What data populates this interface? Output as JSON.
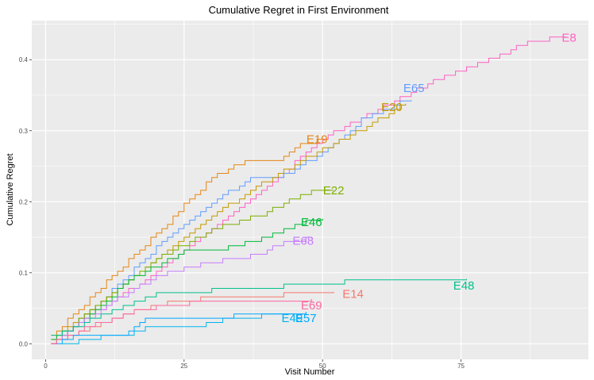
{
  "chart_data": {
    "type": "line",
    "title": "Cumulative Regret in First Environment",
    "xlabel": "Visit Number",
    "ylabel": "Cumulative Regret",
    "xlim": [
      -2.5,
      98
    ],
    "ylim": [
      -0.022,
      0.455
    ],
    "x_ticks": [
      0,
      25,
      50,
      75
    ],
    "y_ticks": [
      0.0,
      0.1,
      0.2,
      0.3,
      0.4
    ],
    "y_tick_labels": [
      "0.0",
      "0.1",
      "0.2",
      "0.3",
      "0.4"
    ],
    "grid": true,
    "legend": "none (direct labels at line ends)",
    "background_color": "#EBEBEB",
    "grid_color": "#FFFFFF",
    "series": [
      {
        "name": "E8",
        "color": "#FF61C3",
        "points": [
          [
            1,
            0.0
          ],
          [
            5,
            0.025
          ],
          [
            10,
            0.05
          ],
          [
            20,
            0.1
          ],
          [
            30,
            0.16
          ],
          [
            40,
            0.22
          ],
          [
            50,
            0.29
          ],
          [
            60,
            0.33
          ],
          [
            70,
            0.37
          ],
          [
            80,
            0.4
          ],
          [
            87,
            0.425
          ],
          [
            94,
            0.432
          ]
        ]
      },
      {
        "name": "E65",
        "color": "#619CFF",
        "points": [
          [
            1,
            0.0
          ],
          [
            10,
            0.06
          ],
          [
            20,
            0.135
          ],
          [
            30,
            0.2
          ],
          [
            37,
            0.233
          ],
          [
            42,
            0.233
          ],
          [
            50,
            0.27
          ],
          [
            57,
            0.315
          ],
          [
            64,
            0.34
          ],
          [
            66,
            0.343
          ]
        ]
      },
      {
        "name": "E20",
        "color": "#C49A00",
        "points": [
          [
            1,
            0.005
          ],
          [
            10,
            0.06
          ],
          [
            20,
            0.12
          ],
          [
            30,
            0.18
          ],
          [
            40,
            0.23
          ],
          [
            50,
            0.275
          ],
          [
            58,
            0.305
          ],
          [
            64,
            0.335
          ],
          [
            65,
            0.338
          ]
        ]
      },
      {
        "name": "E19",
        "color": "#E68613",
        "points": [
          [
            1,
            0.01
          ],
          [
            10,
            0.08
          ],
          [
            20,
            0.155
          ],
          [
            30,
            0.235
          ],
          [
            37,
            0.26
          ],
          [
            42,
            0.26
          ],
          [
            46,
            0.28
          ],
          [
            50,
            0.288
          ]
        ]
      },
      {
        "name": "E22",
        "color": "#7CAE00",
        "points": [
          [
            1,
            0.0
          ],
          [
            10,
            0.06
          ],
          [
            20,
            0.12
          ],
          [
            30,
            0.16
          ],
          [
            40,
            0.185
          ],
          [
            45,
            0.205
          ],
          [
            48,
            0.215
          ],
          [
            52,
            0.216
          ]
        ]
      },
      {
        "name": "E46",
        "color": "#00BA38",
        "points": [
          [
            1,
            0.005
          ],
          [
            8,
            0.04
          ],
          [
            15,
            0.09
          ],
          [
            25,
            0.13
          ],
          [
            30,
            0.13
          ],
          [
            40,
            0.15
          ],
          [
            45,
            0.165
          ],
          [
            48,
            0.175
          ],
          [
            50,
            0.176
          ]
        ]
      },
      {
        "name": "E68",
        "color": "#C77CFF",
        "points": [
          [
            1,
            0.0
          ],
          [
            10,
            0.05
          ],
          [
            20,
            0.095
          ],
          [
            30,
            0.115
          ],
          [
            38,
            0.125
          ],
          [
            44,
            0.145
          ],
          [
            48,
            0.148
          ]
        ]
      },
      {
        "name": "E48",
        "color": "#00C08B",
        "points": [
          [
            1,
            0.01
          ],
          [
            10,
            0.04
          ],
          [
            20,
            0.07
          ],
          [
            30,
            0.075
          ],
          [
            40,
            0.08
          ],
          [
            52,
            0.085
          ],
          [
            55,
            0.09
          ],
          [
            76,
            0.091
          ]
        ]
      },
      {
        "name": "E14",
        "color": "#F8766D",
        "points": [
          [
            1,
            0.0
          ],
          [
            10,
            0.03
          ],
          [
            20,
            0.055
          ],
          [
            30,
            0.065
          ],
          [
            40,
            0.068
          ],
          [
            50,
            0.072
          ],
          [
            52,
            0.073
          ]
        ]
      },
      {
        "name": "E69",
        "color": "#FF68A1",
        "points": [
          [
            1,
            0.0
          ],
          [
            8,
            0.025
          ],
          [
            16,
            0.045
          ],
          [
            22,
            0.055
          ],
          [
            30,
            0.06
          ],
          [
            40,
            0.062
          ],
          [
            48,
            0.063
          ]
        ]
      },
      {
        "name": "E49",
        "color": "#00B4F0",
        "points": [
          [
            3,
            0.0
          ],
          [
            10,
            0.01
          ],
          [
            16,
            0.015
          ],
          [
            18,
            0.025
          ],
          [
            28,
            0.025
          ],
          [
            32,
            0.035
          ],
          [
            40,
            0.04
          ],
          [
            45,
            0.042
          ]
        ]
      },
      {
        "name": "E57",
        "color": "#00A9FF",
        "points": [
          [
            2,
            0.0
          ],
          [
            5,
            0.01
          ],
          [
            15,
            0.015
          ],
          [
            18,
            0.035
          ],
          [
            28,
            0.035
          ],
          [
            35,
            0.04
          ],
          [
            42,
            0.043
          ],
          [
            47,
            0.045
          ]
        ]
      }
    ],
    "labels": [
      {
        "text": "E8",
        "x": 94.5,
        "y": 0.431,
        "color": "#FF61C3"
      },
      {
        "text": "E65",
        "x": 66.5,
        "y": 0.36,
        "color": "#619CFF"
      },
      {
        "text": "E20",
        "x": 62.5,
        "y": 0.333,
        "color": "#C49A00"
      },
      {
        "text": "E19",
        "x": 49,
        "y": 0.288,
        "color": "#E68613"
      },
      {
        "text": "E22",
        "x": 52,
        "y": 0.216,
        "color": "#7CAE00"
      },
      {
        "text": "E46",
        "x": 48,
        "y": 0.171,
        "color": "#00BA38"
      },
      {
        "text": "E68",
        "x": 46.5,
        "y": 0.145,
        "color": "#C77CFF"
      },
      {
        "text": "E48",
        "x": 75.5,
        "y": 0.082,
        "color": "#00C08B"
      },
      {
        "text": "E14",
        "x": 55.5,
        "y": 0.07,
        "color": "#F8766D"
      },
      {
        "text": "E69",
        "x": 48,
        "y": 0.054,
        "color": "#FF68A1"
      },
      {
        "text": "E49",
        "x": 44.5,
        "y": 0.036,
        "color": "#00B4F0"
      },
      {
        "text": "E57",
        "x": 47,
        "y": 0.036,
        "color": "#00A9FF"
      }
    ]
  }
}
